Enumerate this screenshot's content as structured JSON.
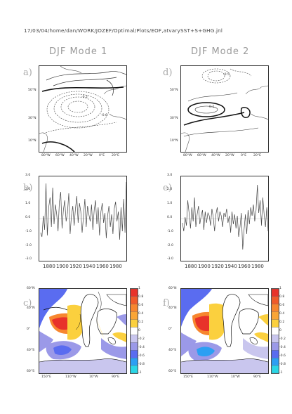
{
  "header": {
    "path": "17/03/04/home/dan/WORK/JOZEF/Optimal/Plots/EOF,atvarySST+S+GHG.jnl"
  },
  "modes": [
    {
      "title": "DJF Mode 1",
      "map_label": "a)",
      "ts_label": "b)",
      "ocean_label": "c)"
    },
    {
      "title": "DJF Mode 2",
      "map_label": "d)",
      "ts_label": "e)",
      "ocean_label": "f)"
    }
  ],
  "atlantic_map": {
    "lat_ticks": [
      "50°N",
      "30°N",
      "10°N"
    ],
    "lon_ticks": [
      "80°W",
      "60°W",
      "40°W",
      "20°W",
      "0°E",
      "20°E"
    ],
    "contour_labels_mode1": [
      "-0.2",
      "-0.6"
    ],
    "contour_labels_mode2": [
      "-0.5",
      "0.2"
    ]
  },
  "timeseries_axes": {
    "y_ticks": [
      "3.0",
      "2.0",
      "1.0",
      "0.0",
      "-1.0",
      "-2.0",
      "-3.0"
    ],
    "x_ticks": [
      "1880",
      "1900",
      "1920",
      "1940",
      "1960",
      "1980"
    ]
  },
  "ocean_map": {
    "lat_ticks": [
      "60°N",
      "40°N",
      "0°",
      "40°S",
      "60°S"
    ],
    "lon_ticks": [
      "150°E",
      "110°W",
      "10°W",
      "90°E"
    ]
  },
  "colorbar": {
    "labels": [
      "1",
      "0.8",
      "0.6",
      "0.4",
      "0.2",
      "0",
      "-0.2",
      "-0.4",
      "-0.6",
      "-0.8",
      "-1"
    ],
    "colors": [
      "#e8322a",
      "#f05a2a",
      "#f7862f",
      "#f9a536",
      "#fbd03e",
      "#ffffff",
      "#c9c6ee",
      "#9b99e8",
      "#5a6cf0",
      "#2c9ff3",
      "#2ad6e6"
    ]
  },
  "chart_data": [
    {
      "type": "line",
      "title": "DJF Mode 1",
      "x": [
        1870,
        1872,
        1874,
        1876,
        1878,
        1880,
        1882,
        1884,
        1886,
        1888,
        1890,
        1892,
        1894,
        1896,
        1898,
        1900,
        1902,
        1904,
        1906,
        1908,
        1910,
        1912,
        1914,
        1916,
        1918,
        1920,
        1922,
        1924,
        1926,
        1928,
        1930,
        1932,
        1934,
        1936,
        1938,
        1940,
        1942,
        1944,
        1946,
        1948,
        1950,
        1952,
        1954,
        1956,
        1958,
        1960,
        1962,
        1964,
        1966,
        1968,
        1970,
        1972,
        1974,
        1976,
        1978,
        1980,
        1982,
        1984,
        1986,
        1988,
        1990,
        1992,
        1994,
        1996,
        1998
      ],
      "series": [
        {
          "values": [
            -1.0,
            -1.3,
            0.2,
            -0.8,
            2.5,
            -1.2,
            0.8,
            1.5,
            -0.6,
            2.2,
            -0.4,
            1.0,
            0.3,
            -0.9,
            1.2,
            1.9,
            -0.7,
            0.6,
            1.3,
            -0.2,
            0.4,
            1.8,
            -1.1,
            0.2,
            0.9,
            -0.5,
            0.7,
            1.6,
            -0.3,
            1.1,
            0.5,
            -1.0,
            0.2,
            1.4,
            -0.6,
            0.9,
            0.3,
            -0.2,
            1.0,
            -0.8,
            0.6,
            1.3,
            -0.4,
            0.8,
            -1.2,
            0.5,
            1.1,
            -0.3,
            0.4,
            -1.4,
            0.2,
            0.9,
            -0.6,
            0.3,
            -1.1,
            0.7,
            1.2,
            -0.2,
            0.5,
            -1.5,
            0.8,
            -0.9,
            1.4,
            -1.0,
            2.6
          ]
        }
      ],
      "ylim": [
        -3.0,
        3.0
      ],
      "xlim": [
        1868,
        1998
      ]
    },
    {
      "type": "line",
      "title": "DJF Mode 2",
      "x": [
        1870,
        1872,
        1874,
        1876,
        1878,
        1880,
        1882,
        1884,
        1886,
        1888,
        1890,
        1892,
        1894,
        1896,
        1898,
        1900,
        1902,
        1904,
        1906,
        1908,
        1910,
        1912,
        1914,
        1916,
        1918,
        1920,
        1922,
        1924,
        1926,
        1928,
        1930,
        1932,
        1934,
        1936,
        1938,
        1940,
        1942,
        1944,
        1946,
        1948,
        1950,
        1952,
        1954,
        1956,
        1958,
        1960,
        1962,
        1964,
        1966,
        1968,
        1970,
        1972,
        1974,
        1976,
        1978,
        1980,
        1982,
        1984,
        1986,
        1988,
        1990,
        1992,
        1994,
        1996,
        1998
      ],
      "series": [
        {
          "values": [
            -0.3,
            -0.9,
            0.1,
            -0.5,
            1.3,
            0.4,
            -0.7,
            0.8,
            -0.2,
            1.5,
            -0.6,
            0.3,
            0.9,
            -0.4,
            0.2,
            0.6,
            -0.8,
            0.5,
            -0.3,
            0.4,
            0.2,
            -0.5,
            0.7,
            0.1,
            -0.9,
            0.3,
            0.8,
            -0.2,
            0.5,
            0.2,
            -0.6,
            0.4,
            0.1,
            0.7,
            -0.3,
            0.2,
            -1.0,
            0.5,
            -0.4,
            0.3,
            -0.7,
            0.2,
            -1.3,
            -0.6,
            0.4,
            -2.2,
            -0.8,
            0.3,
            -1.1,
            0.6,
            -0.4,
            0.8,
            0.2,
            1.0,
            -0.2,
            0.6,
            2.4,
            0.4,
            1.3,
            -0.5,
            1.5,
            0.3,
            -0.6,
            0.8,
            -0.9
          ]
        }
      ],
      "ylim": [
        -3.0,
        3.0
      ],
      "xlim": [
        1868,
        1998
      ]
    }
  ]
}
